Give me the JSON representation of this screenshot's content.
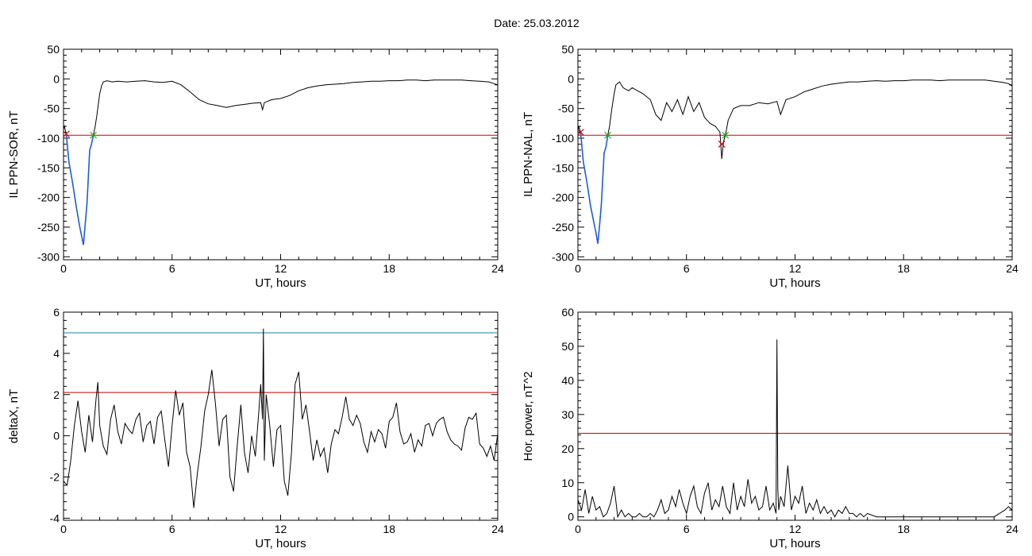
{
  "figure": {
    "title": "Date:  25.03.2012"
  },
  "chart_data": [
    {
      "type": "line",
      "xlabel": "UT, hours",
      "ylabel": "IL PPN-SOR, nT",
      "xlim": [
        0,
        24
      ],
      "ylim": [
        -305,
        50
      ],
      "xticks": [
        0,
        6,
        12,
        18,
        24
      ],
      "yticks": [
        50,
        0,
        -50,
        -100,
        -150,
        -200,
        -250,
        -300
      ],
      "threshold": {
        "value": -95,
        "color": "#cc0000"
      },
      "highlight_color": "#1f5fd6",
      "highlight_range": [
        0.15,
        1.65
      ],
      "markers": [
        {
          "x": 0.15,
          "y": -93,
          "symbol": "x",
          "color": "#cc0000"
        },
        {
          "x": 1.65,
          "y": -95,
          "symbol": "x",
          "color": "#22aa22"
        }
      ],
      "series": [
        {
          "color": "#000000",
          "x": [
            0,
            0.05,
            0.15,
            0.3,
            0.5,
            0.7,
            0.9,
            1.0,
            1.1,
            1.2,
            1.3,
            1.45,
            1.55,
            1.65,
            1.75,
            1.85,
            2.0,
            2.1,
            2.2,
            2.4,
            2.7,
            3.0,
            3.5,
            4.0,
            4.5,
            5.0,
            5.5,
            6.0,
            6.5,
            7.0,
            7.5,
            8.0,
            8.5,
            9.0,
            9.5,
            10.0,
            10.5,
            10.9,
            11.0,
            11.1,
            11.5,
            12.0,
            12.5,
            13.0,
            13.5,
            14.0,
            14.5,
            15.0,
            15.5,
            16.0,
            16.5,
            17.0,
            17.5,
            18.0,
            18.5,
            19.0,
            19.5,
            20.0,
            20.5,
            21.0,
            21.5,
            22.0,
            22.5,
            23.0,
            23.5,
            23.8,
            24.0
          ],
          "y": [
            -85,
            -80,
            -93,
            -140,
            -175,
            -215,
            -250,
            -265,
            -280,
            -245,
            -210,
            -120,
            -110,
            -95,
            -80,
            -60,
            -25,
            -12,
            -5,
            -3,
            -5,
            -4,
            -5,
            -4,
            -3,
            -5,
            -6,
            -4,
            -10,
            -22,
            -35,
            -42,
            -45,
            -48,
            -45,
            -43,
            -41,
            -40,
            -52,
            -40,
            -35,
            -33,
            -28,
            -20,
            -15,
            -12,
            -10,
            -9,
            -8,
            -6,
            -5,
            -4,
            -4,
            -3,
            -3,
            -2,
            -2,
            -3,
            -2,
            -2,
            -2,
            -2,
            -3,
            -4,
            -5,
            -8,
            -10
          ]
        }
      ]
    },
    {
      "type": "line",
      "xlabel": "UT, hours",
      "ylabel": "IL PPN-NAL, nT",
      "xlim": [
        0,
        24
      ],
      "ylim": [
        -305,
        50
      ],
      "xticks": [
        0,
        6,
        12,
        18,
        24
      ],
      "yticks": [
        50,
        0,
        -50,
        -100,
        -150,
        -200,
        -250,
        -300
      ],
      "threshold": {
        "value": -95,
        "color": "#cc0000"
      },
      "highlight_color": "#1f5fd6",
      "highlight_range": [
        0.15,
        1.65
      ],
      "markers": [
        {
          "x": 0.15,
          "y": -90,
          "symbol": "x",
          "color": "#cc0000"
        },
        {
          "x": 1.65,
          "y": -95,
          "symbol": "x",
          "color": "#22aa22"
        },
        {
          "x": 7.95,
          "y": -110,
          "symbol": "x",
          "color": "#cc0000"
        },
        {
          "x": 8.15,
          "y": -95,
          "symbol": "x",
          "color": "#22aa22"
        }
      ],
      "series": [
        {
          "color": "#000000",
          "x": [
            0,
            0.05,
            0.15,
            0.3,
            0.5,
            0.7,
            0.9,
            1.0,
            1.1,
            1.2,
            1.3,
            1.45,
            1.55,
            1.65,
            1.75,
            1.85,
            2.0,
            2.1,
            2.3,
            2.5,
            2.8,
            3.0,
            3.3,
            3.6,
            4.0,
            4.3,
            4.6,
            4.9,
            5.2,
            5.5,
            5.8,
            6.1,
            6.4,
            6.7,
            7.0,
            7.3,
            7.6,
            7.85,
            7.95,
            8.05,
            8.15,
            8.3,
            8.6,
            9.0,
            9.5,
            10.0,
            10.5,
            11.0,
            11.2,
            11.5,
            12.0,
            12.5,
            13.0,
            13.5,
            14.0,
            14.5,
            15.0,
            15.5,
            16.0,
            16.5,
            17.0,
            17.5,
            18.0,
            18.5,
            19.0,
            19.5,
            20.0,
            20.5,
            21.0,
            21.5,
            22.0,
            22.5,
            23.0,
            23.5,
            23.8,
            24.0
          ],
          "y": [
            -90,
            -80,
            -90,
            -140,
            -175,
            -215,
            -245,
            -260,
            -278,
            -245,
            -210,
            -125,
            -115,
            -95,
            -80,
            -55,
            -25,
            -10,
            -5,
            -15,
            -20,
            -15,
            -20,
            -25,
            -35,
            -60,
            -70,
            -40,
            -55,
            -35,
            -60,
            -30,
            -55,
            -40,
            -65,
            -75,
            -80,
            -90,
            -135,
            -105,
            -95,
            -70,
            -50,
            -45,
            -45,
            -40,
            -42,
            -38,
            -60,
            -35,
            -30,
            -22,
            -17,
            -12,
            -9,
            -7,
            -5,
            -5,
            -4,
            -3,
            -4,
            -3,
            -3,
            -2,
            -2,
            -2,
            -3,
            -2,
            -2,
            -2,
            -2,
            -2,
            -4,
            -6,
            -8,
            -12
          ]
        }
      ]
    },
    {
      "type": "line",
      "xlabel": "UT, hours",
      "ylabel": "deltaX, nT",
      "xlim": [
        0,
        24
      ],
      "ylim": [
        -4.1,
        6
      ],
      "xticks": [
        0,
        6,
        12,
        18,
        24
      ],
      "yticks": [
        6,
        4,
        2,
        0,
        -2,
        -4
      ],
      "reference_lines": [
        {
          "value": 5.0,
          "color": "#1f7f9f"
        },
        {
          "value": 2.1,
          "color": "#cc0000"
        }
      ],
      "series": [
        {
          "color": "#000000",
          "x": [
            0,
            0.2,
            0.4,
            0.6,
            0.8,
            1.0,
            1.2,
            1.4,
            1.6,
            1.8,
            1.9,
            2.0,
            2.2,
            2.4,
            2.6,
            2.8,
            3.0,
            3.2,
            3.4,
            3.6,
            3.8,
            4.0,
            4.2,
            4.4,
            4.6,
            4.8,
            5.0,
            5.2,
            5.4,
            5.6,
            5.8,
            6.0,
            6.2,
            6.4,
            6.6,
            6.8,
            7.0,
            7.2,
            7.4,
            7.6,
            7.8,
            8.0,
            8.2,
            8.4,
            8.6,
            8.8,
            9.0,
            9.2,
            9.4,
            9.6,
            9.8,
            10.0,
            10.2,
            10.4,
            10.6,
            10.8,
            10.9,
            11.0,
            11.05,
            11.1,
            11.2,
            11.4,
            11.6,
            11.8,
            12.0,
            12.2,
            12.4,
            12.6,
            12.8,
            13.0,
            13.2,
            13.4,
            13.6,
            13.8,
            14.0,
            14.2,
            14.4,
            14.6,
            14.8,
            15.0,
            15.2,
            15.4,
            15.6,
            15.8,
            16.0,
            16.2,
            16.4,
            16.6,
            16.8,
            17.0,
            17.2,
            17.4,
            17.6,
            17.8,
            18.0,
            18.2,
            18.4,
            18.6,
            18.8,
            19.0,
            19.2,
            19.4,
            19.6,
            19.8,
            20.0,
            20.2,
            20.4,
            20.6,
            20.8,
            21.0,
            21.2,
            21.4,
            21.6,
            21.8,
            22.0,
            22.2,
            22.4,
            22.6,
            22.8,
            23.0,
            23.2,
            23.4,
            23.6,
            23.8,
            24.0
          ],
          "y": [
            -2.2,
            -2.4,
            -1.2,
            0.5,
            1.7,
            0.2,
            -0.8,
            1.0,
            -0.3,
            1.8,
            2.6,
            0.5,
            -0.5,
            -0.9,
            0.8,
            1.5,
            0.2,
            -0.4,
            0.6,
            0.3,
            0.1,
            0.8,
            1.1,
            -0.3,
            0.5,
            0.7,
            -0.4,
            0.9,
            1.2,
            -0.2,
            -1.5,
            0.5,
            2.2,
            1.0,
            1.6,
            -0.8,
            -1.5,
            -3.5,
            -1.8,
            -0.5,
            1.2,
            2.0,
            3.2,
            1.5,
            -0.5,
            0.8,
            1.0,
            -2.0,
            -2.7,
            -0.5,
            1.5,
            -0.8,
            -1.8,
            0.0,
            -1.0,
            1.2,
            2.5,
            0.8,
            5.2,
            -1.2,
            2.0,
            0.5,
            -1.5,
            0.3,
            0.5,
            -2.2,
            -2.9,
            -0.8,
            2.5,
            3.1,
            0.8,
            1.5,
            0.2,
            -1.2,
            -0.2,
            -1.0,
            -0.6,
            -1.8,
            -0.4,
            0.3,
            0.1,
            0.9,
            1.9,
            0.8,
            0.5,
            1.0,
            0.6,
            -0.3,
            -0.8,
            0.2,
            -0.3,
            0.3,
            0.1,
            -0.6,
            0.7,
            0.9,
            1.6,
            0.2,
            -0.4,
            -0.3,
            0.1,
            -0.8,
            -0.2,
            -0.5,
            0.5,
            0.6,
            0.0,
            0.6,
            0.8,
            0.9,
            0.2,
            -0.2,
            -0.4,
            -0.5,
            -0.7,
            0.4,
            0.9,
            0.8,
            1.1,
            -0.4,
            -0.6,
            -1.0,
            -0.5,
            -1.2,
            0.1
          ]
        }
      ]
    },
    {
      "type": "line",
      "xlabel": "UT, hours",
      "ylabel": "Hor. power, nT^2",
      "xlim": [
        0,
        24
      ],
      "ylim": [
        -1,
        60
      ],
      "xticks": [
        0,
        6,
        12,
        18,
        24
      ],
      "yticks": [
        60,
        50,
        40,
        30,
        20,
        10,
        0
      ],
      "threshold": {
        "value": 24.5,
        "color": "#cc0000"
      },
      "series": [
        {
          "color": "#000000",
          "x": [
            0,
            0.2,
            0.4,
            0.6,
            0.8,
            1.0,
            1.2,
            1.4,
            1.6,
            1.8,
            2.0,
            2.2,
            2.4,
            2.6,
            2.8,
            3.0,
            3.2,
            3.4,
            3.6,
            3.8,
            4.0,
            4.2,
            4.4,
            4.6,
            4.8,
            5.0,
            5.2,
            5.4,
            5.6,
            5.8,
            6.0,
            6.2,
            6.4,
            6.6,
            6.8,
            7.0,
            7.2,
            7.4,
            7.6,
            7.8,
            8.0,
            8.2,
            8.4,
            8.6,
            8.8,
            9.0,
            9.2,
            9.4,
            9.6,
            9.8,
            10.0,
            10.2,
            10.4,
            10.6,
            10.8,
            10.95,
            11.0,
            11.05,
            11.1,
            11.2,
            11.4,
            11.6,
            11.8,
            12.0,
            12.2,
            12.4,
            12.6,
            12.8,
            13.0,
            13.2,
            13.4,
            13.6,
            13.8,
            14.0,
            14.2,
            14.4,
            14.6,
            14.8,
            15.0,
            15.2,
            15.4,
            15.6,
            15.8,
            16.0,
            16.5,
            17.0,
            17.5,
            18.0,
            18.5,
            19.0,
            19.5,
            20.0,
            20.5,
            21.0,
            21.5,
            22.0,
            22.5,
            23.0,
            23.3,
            23.6,
            23.8,
            24.0
          ],
          "y": [
            5,
            2,
            8,
            1,
            6,
            2,
            3,
            0,
            1,
            4,
            9,
            0,
            2,
            0,
            1,
            0,
            0,
            1,
            0,
            0,
            1,
            0,
            2,
            5,
            1,
            2,
            6,
            3,
            8,
            4,
            1,
            6,
            9,
            3,
            1,
            7,
            10,
            2,
            5,
            3,
            9,
            3,
            1,
            10,
            2,
            6,
            3,
            11,
            4,
            6,
            2,
            3,
            9,
            2,
            4,
            1,
            52,
            8,
            2,
            6,
            3,
            15,
            2,
            6,
            4,
            9,
            1,
            4,
            2,
            5,
            1,
            3,
            1,
            2,
            0,
            2,
            1,
            3,
            1,
            1,
            0,
            1,
            0,
            1,
            0,
            0,
            0,
            0,
            0,
            0,
            0,
            0,
            0,
            0,
            0,
            0,
            0,
            0,
            1,
            2,
            3,
            2
          ]
        }
      ]
    }
  ]
}
